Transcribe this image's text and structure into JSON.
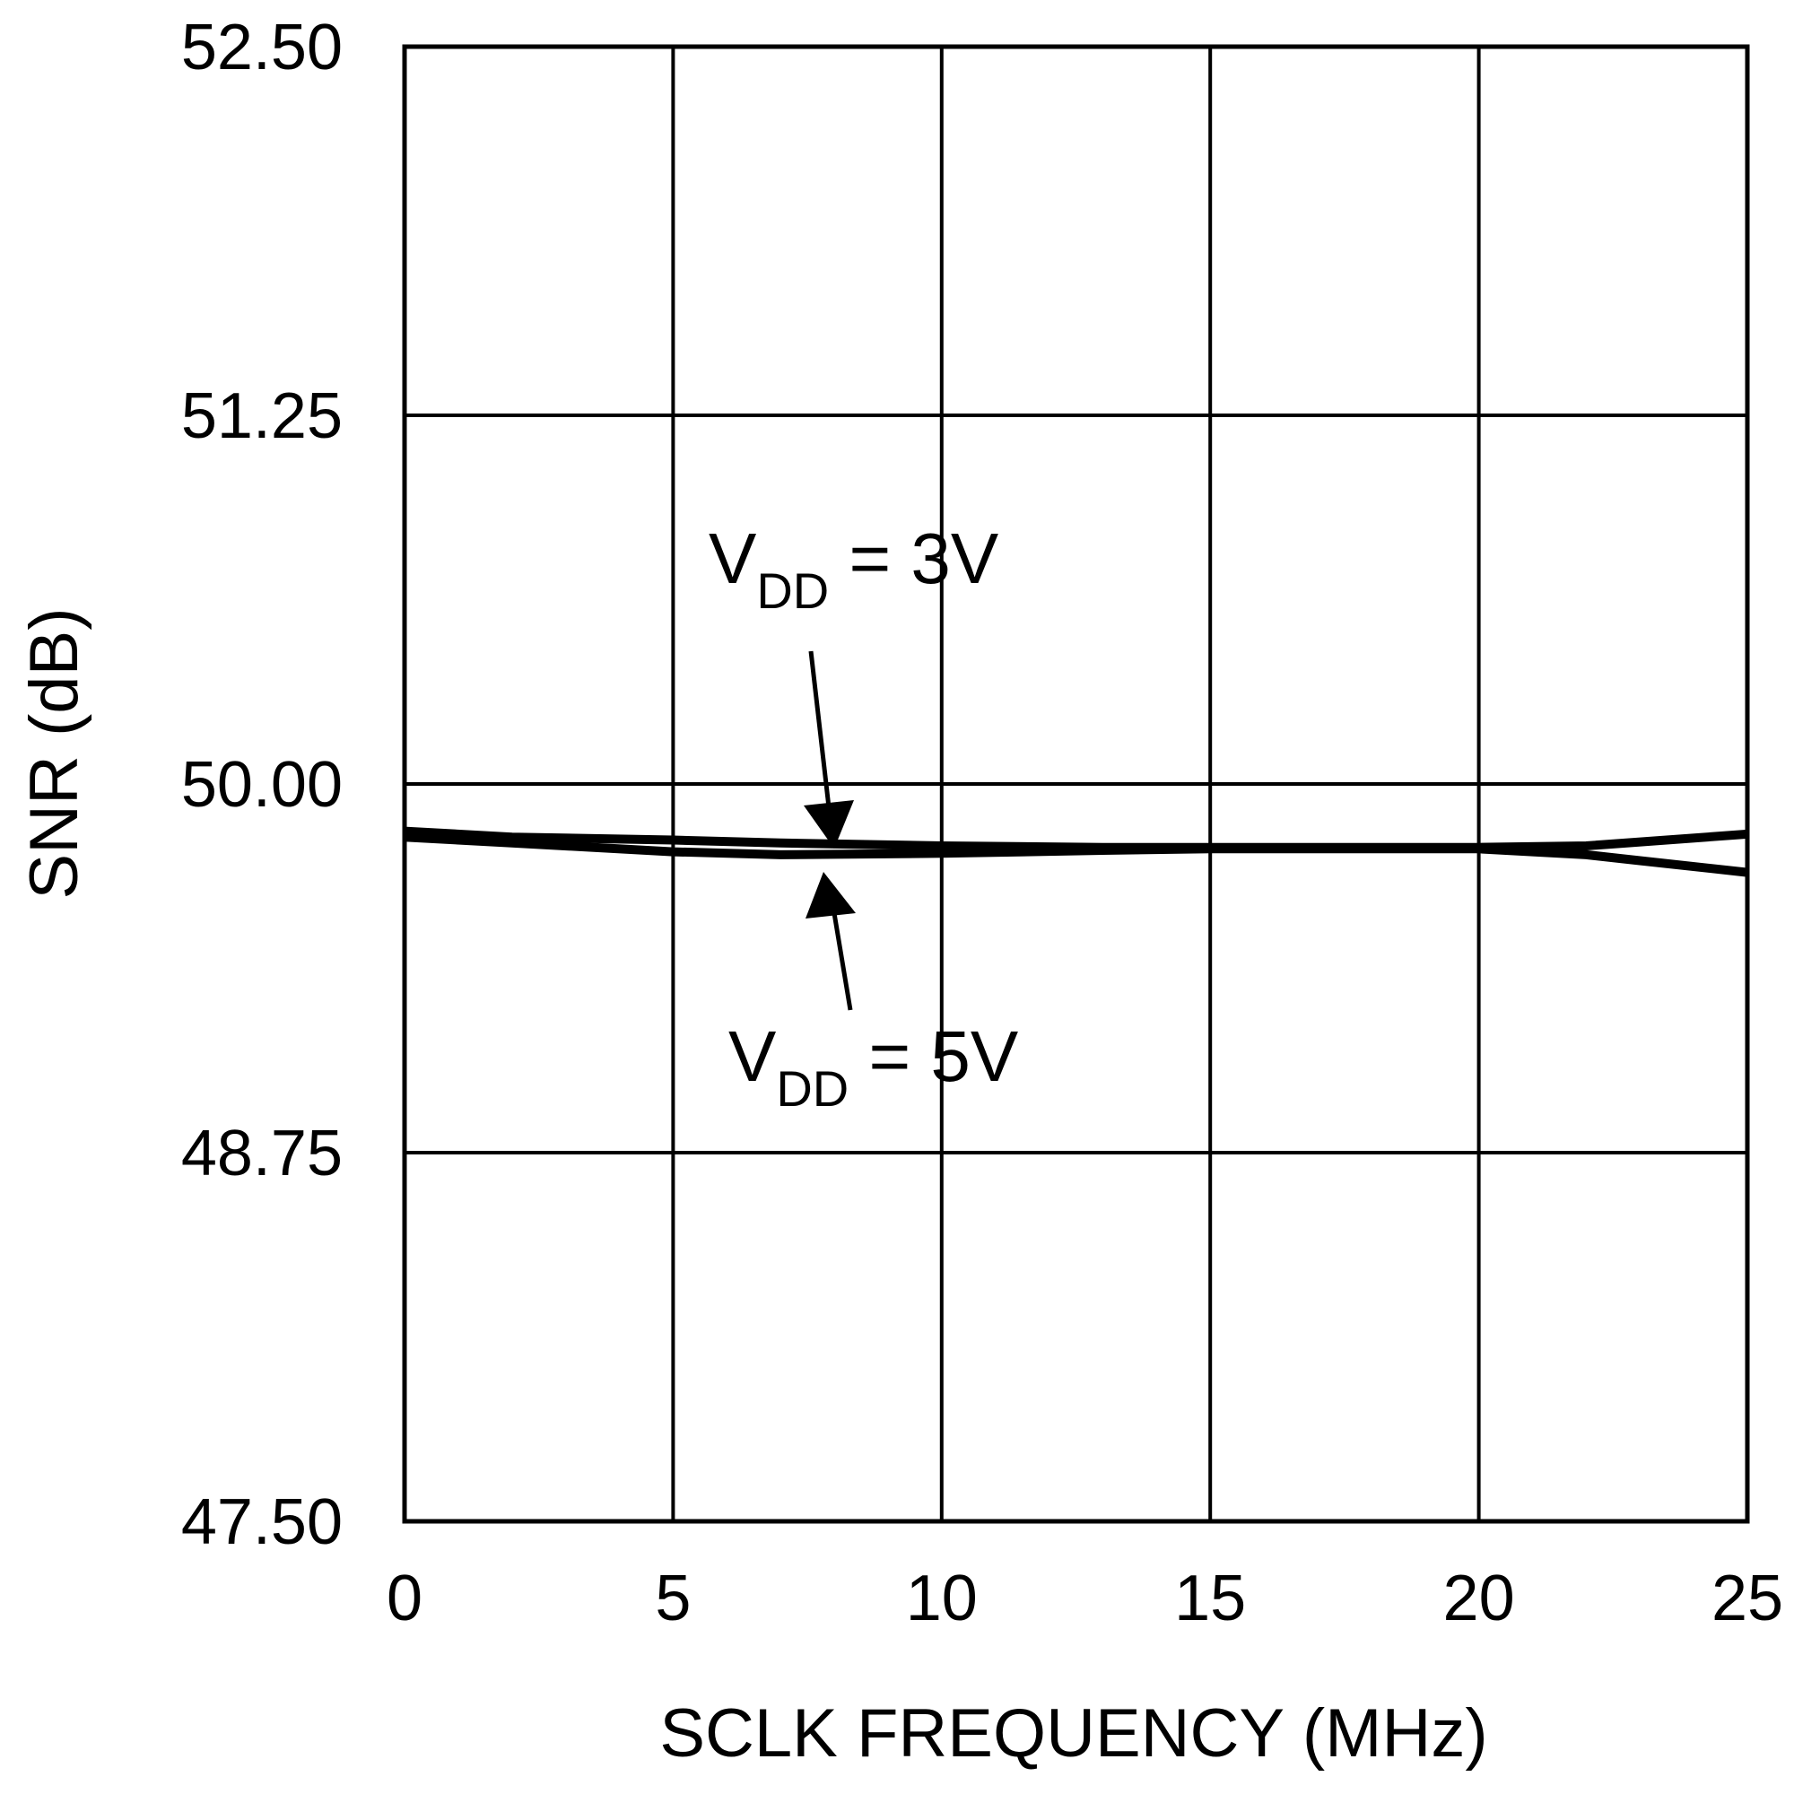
{
  "chart_data": {
    "type": "line",
    "xlabel": "SCLK FREQUENCY (MHz)",
    "ylabel": "SNR (dB)",
    "xlim": [
      0,
      25
    ],
    "ylim": [
      47.5,
      52.5
    ],
    "xticks": [
      0,
      5,
      10,
      15,
      20,
      25
    ],
    "xtick_labels": [
      "0",
      "5",
      "10",
      "15",
      "20",
      "25"
    ],
    "yticks": [
      47.5,
      48.75,
      50.0,
      51.25,
      52.5
    ],
    "ytick_labels": [
      "47.50",
      "48.75",
      "50.00",
      "51.25",
      "52.50"
    ],
    "grid": true,
    "series": [
      {
        "name": "VDD = 3V",
        "x": [
          0,
          2,
          5,
          7,
          10,
          13,
          15,
          17,
          20,
          22,
          25
        ],
        "y": [
          49.84,
          49.82,
          49.81,
          49.8,
          49.79,
          49.785,
          49.785,
          49.785,
          49.785,
          49.79,
          49.83
        ]
      },
      {
        "name": "VDD = 5V",
        "x": [
          0,
          2,
          5,
          7,
          10,
          13,
          15,
          17,
          20,
          22,
          23,
          25
        ],
        "y": [
          49.82,
          49.8,
          49.77,
          49.76,
          49.765,
          49.775,
          49.78,
          49.78,
          49.78,
          49.76,
          49.74,
          49.7
        ]
      }
    ],
    "annotations": [
      {
        "main": "V",
        "sub": "DD",
        "rest": " = 3V"
      },
      {
        "main": "V",
        "sub": "DD",
        "rest": " = 5V"
      }
    ]
  }
}
